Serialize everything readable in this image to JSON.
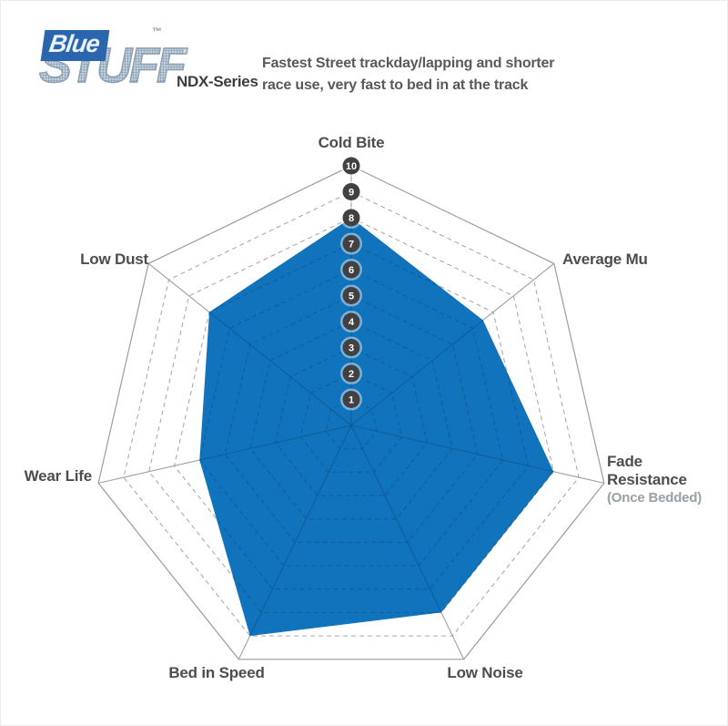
{
  "page": {
    "background": "#ffffff"
  },
  "logo": {
    "brand_top": "Blue",
    "brand_bottom": "STUFF",
    "trademark": "™",
    "series_label": "NDX-Series",
    "brand_color": "#2a66ae"
  },
  "header": {
    "description_line1": "Fastest Street trackday/lapping and shorter",
    "description_line2": "race use, very fast to bed in at the track"
  },
  "chart_data": {
    "type": "radar",
    "sides": 7,
    "categories": [
      "Cold Bite",
      "Average Mu",
      "Fade Resistance (Once Bedded)",
      "Low Noise",
      "Bed in Speed",
      "Wear Life",
      "Low Dust"
    ],
    "values": [
      8,
      6.5,
      8,
      8,
      9,
      6,
      7
    ],
    "scale_min": 0,
    "scale_max": 10,
    "tick_labels": [
      "1",
      "2",
      "3",
      "4",
      "5",
      "6",
      "7",
      "8",
      "9",
      "10"
    ],
    "fill_color": "#1173bb",
    "grid_color": "#9c9c9c",
    "grid_style": "outer ring solid, inner rings 1-9 dashed, 7 solid spokes",
    "legend_position": "none",
    "labels": {
      "cold_bite": "Cold Bite",
      "average_mu": "Average Mu",
      "fade_line1": "Fade",
      "fade_line2": "Resistance",
      "fade_line3": "(Once Bedded)",
      "low_noise": "Low Noise",
      "bed_in_speed": "Bed in Speed",
      "wear_life": "Wear Life",
      "low_dust": "Low Dust"
    }
  }
}
